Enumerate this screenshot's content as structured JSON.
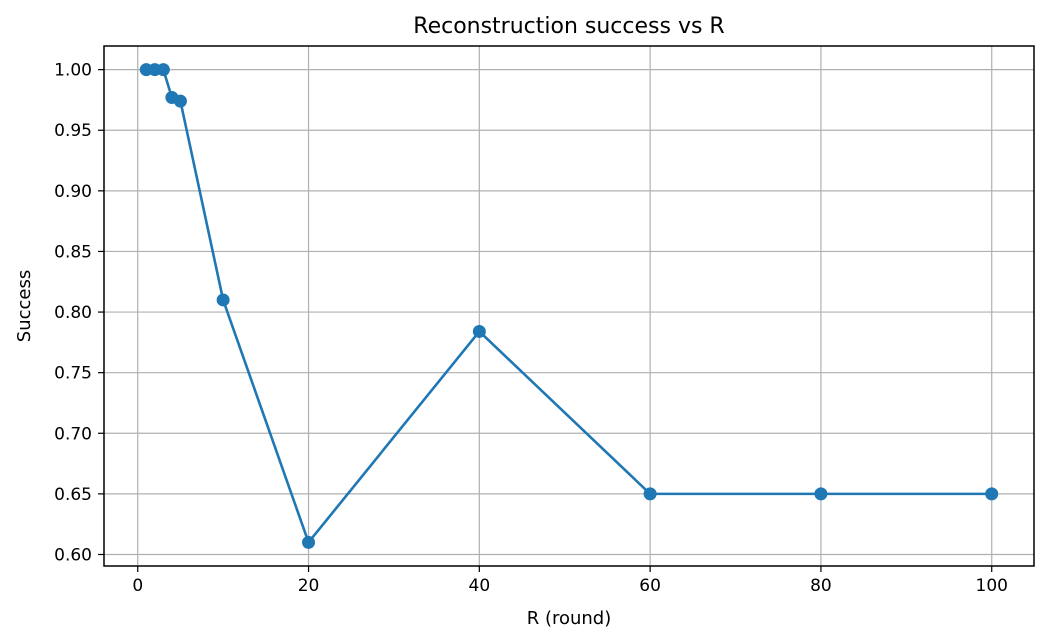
{
  "chart_data": {
    "type": "line",
    "title": "Reconstruction success vs R",
    "xlabel": "R (round)",
    "ylabel": "Success",
    "xlim": [
      -3.95,
      104.95
    ],
    "ylim": [
      0.5905,
      1.0195
    ],
    "grid": true,
    "xticks": [
      0,
      20,
      40,
      60,
      80,
      100
    ],
    "xtick_labels": [
      "0",
      "20",
      "40",
      "60",
      "80",
      "100"
    ],
    "yticks": [
      0.6,
      0.65,
      0.7,
      0.75,
      0.8,
      0.85,
      0.9,
      0.95,
      1.0
    ],
    "ytick_labels": [
      "0.60",
      "0.65",
      "0.70",
      "0.75",
      "0.80",
      "0.85",
      "0.90",
      "0.95",
      "1.00"
    ],
    "series": [
      {
        "color": "#1f77b4",
        "marker": "circle",
        "x": [
          1,
          2,
          3,
          4,
          5,
          10,
          20,
          40,
          60,
          80,
          100
        ],
        "y": [
          1.0,
          1.0,
          1.0,
          0.977,
          0.974,
          0.81,
          0.61,
          0.784,
          0.65,
          0.65,
          0.65
        ]
      }
    ],
    "colors": {
      "grid": "#b0b0b0",
      "axes": "#000000",
      "series": "#1f77b4"
    }
  }
}
